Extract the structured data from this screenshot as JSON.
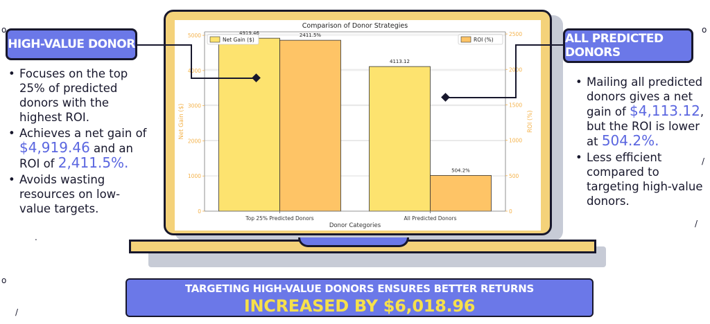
{
  "chart_data": {
    "type": "bar",
    "title": "Comparison of Donor Strategies",
    "xlabel": "Donor Categories",
    "categories": [
      "Top 25% Predicted Donors",
      "All Predicted Donors"
    ],
    "series": [
      {
        "name": "Net Gain ($)",
        "axis": "left",
        "values": [
          4919.46,
          4113.12
        ],
        "labels": [
          "4919.46",
          "4113.12"
        ],
        "color": "#fde36f"
      },
      {
        "name": "ROI (%)",
        "axis": "right",
        "values": [
          2411.5,
          504.2
        ],
        "labels": [
          "2411.5%",
          "504.2%"
        ],
        "color": "#fec466"
      }
    ],
    "y_left": {
      "label": "Net Gain ($)",
      "range": [
        0,
        5100
      ],
      "ticks": [
        0,
        1000,
        2000,
        3000,
        4000,
        5000
      ]
    },
    "y_right": {
      "label": "ROI (%)",
      "range": [
        0,
        2530
      ],
      "ticks": [
        0,
        500,
        1000,
        1500,
        2000,
        2500
      ]
    },
    "grid": true,
    "legend": [
      "top-left",
      "top-right"
    ],
    "axis_color": "#f4b24a"
  },
  "left_panel": {
    "title": "HIGH-VALUE DONOR",
    "bullets": [
      {
        "pre": "Focuses on the top 25% of predicted donors with the highest ROI.",
        "hl1": "",
        "mid": "",
        "hl2": ""
      },
      {
        "pre": "Achieves a net gain of ",
        "hl1": "$4,919.46",
        "mid": " and an ROI of ",
        "hl2": "2,411.5%."
      },
      {
        "pre": "Avoids wasting resources on low-value targets.",
        "hl1": "",
        "mid": "",
        "hl2": ""
      }
    ]
  },
  "right_panel": {
    "title": "ALL PREDICTED DONORS",
    "bullets": [
      {
        "pre": "Mailing all predicted donors gives a net gain of ",
        "hl1": "$4,113.12",
        "mid": ", but the ROI is lower at ",
        "hl2": "504.2%."
      },
      {
        "pre": "Less efficient compared to targeting high-value donors.",
        "hl1": "",
        "mid": "",
        "hl2": ""
      }
    ]
  },
  "banner": {
    "line1": "TARGETING HIGH-VALUE DONORS ENSURES BETTER RETURNS",
    "line2": "INCREASED BY $6,018.96"
  }
}
